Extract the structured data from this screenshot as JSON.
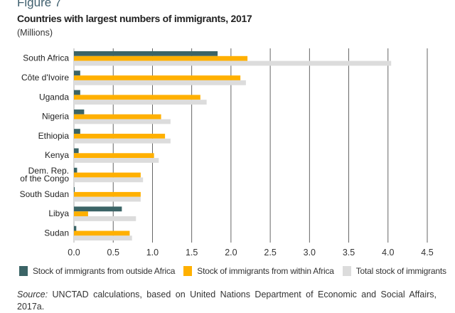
{
  "figure_label": "Figure 7",
  "chart_data": {
    "type": "bar",
    "orientation": "horizontal",
    "title": "Countries with largest numbers of immigrants, 2017",
    "subtitle": "(Millions)",
    "categories": [
      "South Africa",
      "Côte d'Ivoire",
      "Uganda",
      "Nigeria",
      "Ethiopia",
      "Kenya",
      "Dem. Rep. of the Congo",
      "South Sudan",
      "Libya",
      "Sudan"
    ],
    "category_lines": [
      [
        "South Africa"
      ],
      [
        "Côte d'Ivoire"
      ],
      [
        "Uganda"
      ],
      [
        "Nigeria"
      ],
      [
        "Ethiopia"
      ],
      [
        "Kenya"
      ],
      [
        "Dem. Rep.",
        "of the Congo"
      ],
      [
        "South Sudan"
      ],
      [
        "Libya"
      ],
      [
        "Sudan"
      ]
    ],
    "series": [
      {
        "name": "Stock of immigrants from outside Africa",
        "color": "#3b6466",
        "values": [
          1.83,
          0.08,
          0.08,
          0.13,
          0.08,
          0.06,
          0.04,
          0.01,
          0.61,
          0.03
        ]
      },
      {
        "name": "Stock of immigrants from within Africa",
        "color": "#ffb000",
        "values": [
          2.21,
          2.12,
          1.61,
          1.11,
          1.16,
          1.02,
          0.85,
          0.85,
          0.18,
          0.71
        ]
      },
      {
        "name": "Total stock of immigrants",
        "color": "#dcdcdc",
        "values": [
          4.04,
          2.19,
          1.69,
          1.23,
          1.23,
          1.08,
          0.88,
          0.85,
          0.79,
          0.74
        ]
      }
    ],
    "xlim": [
      0,
      4.5
    ],
    "xticks": [
      "0.0",
      "0.5",
      "1.0",
      "1.5",
      "2.0",
      "2.5",
      "3.0",
      "3.5",
      "4.0",
      "4.5"
    ],
    "grid": "vertical",
    "legend": "bottom"
  },
  "source_label": "Source:",
  "source_text": " UNCTAD calculations, based on United Nations Department of Economic and Social Affairs, 2017a."
}
